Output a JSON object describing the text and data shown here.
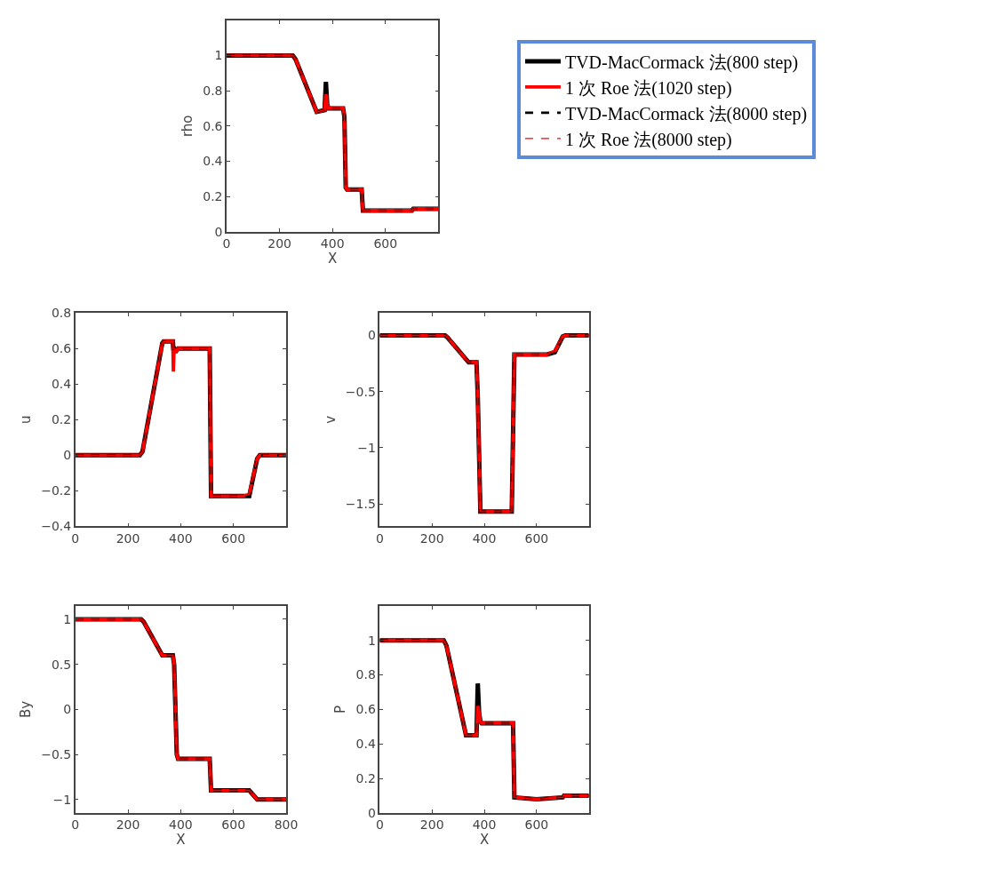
{
  "chart_data": [
    {
      "type": "line",
      "xlabel": "X",
      "ylabel": "rho",
      "xlim": [
        0,
        800
      ],
      "ylim": [
        0,
        1.2
      ],
      "xticks": [
        0,
        200,
        400,
        600
      ],
      "yticks": [
        0,
        0.2,
        0.4,
        0.6,
        0.8,
        1
      ],
      "legend": "right",
      "x": [
        0,
        250,
        260,
        340,
        370,
        375,
        380,
        385,
        390,
        440,
        445,
        450,
        455,
        510,
        515,
        700,
        705,
        800
      ],
      "series": [
        {
          "name": "TVD-MacCormack 法(800 step)",
          "color": "#000000",
          "line_style": "solid",
          "values": [
            1,
            1,
            0.98,
            0.68,
            0.69,
            0.85,
            0.72,
            0.7,
            0.7,
            0.7,
            0.65,
            0.25,
            0.24,
            0.24,
            0.12,
            0.12,
            0.13,
            0.13
          ]
        },
        {
          "name": "1 次 Roe 法(1020 step)",
          "color": "#ff0000",
          "line_style": "solid",
          "values": [
            1,
            1,
            0.98,
            0.68,
            0.69,
            0.78,
            0.72,
            0.7,
            0.7,
            0.7,
            0.65,
            0.25,
            0.24,
            0.24,
            0.12,
            0.12,
            0.13,
            0.13
          ]
        },
        {
          "name": "TVD-MacCormack 法(8000 step)",
          "color": "#000000",
          "line_style": "dashed",
          "values": [
            1,
            1,
            0.98,
            0.68,
            0.69,
            0.7,
            0.7,
            0.7,
            0.7,
            0.7,
            0.65,
            0.25,
            0.24,
            0.24,
            0.12,
            0.12,
            0.13,
            0.13
          ]
        },
        {
          "name": "1 次 Roe 法(8000 step)",
          "color": "#ff0000",
          "line_style": "dashed",
          "values": [
            1,
            1,
            0.98,
            0.68,
            0.69,
            0.7,
            0.7,
            0.7,
            0.7,
            0.7,
            0.65,
            0.25,
            0.24,
            0.24,
            0.12,
            0.12,
            0.13,
            0.13
          ]
        }
      ]
    },
    {
      "type": "line",
      "ylabel": "u",
      "xlim": [
        0,
        800
      ],
      "ylim": [
        -0.4,
        0.8
      ],
      "xticks": [
        0,
        200,
        400,
        600
      ],
      "yticks": [
        -0.4,
        -0.2,
        0,
        0.2,
        0.4,
        0.6,
        0.8
      ],
      "x": [
        0,
        245,
        255,
        330,
        335,
        370,
        372,
        375,
        380,
        390,
        510,
        515,
        640,
        660,
        690,
        700,
        800
      ],
      "series": [
        {
          "color": "#000000",
          "line_style": "solid",
          "values": [
            0,
            0,
            0.02,
            0.63,
            0.64,
            0.64,
            0.6,
            0.6,
            0.58,
            0.6,
            0.6,
            -0.23,
            -0.23,
            -0.23,
            -0.02,
            0,
            0
          ]
        },
        {
          "color": "#ff0000",
          "line_style": "solid",
          "values": [
            0,
            0,
            0.02,
            0.63,
            0.64,
            0.64,
            0.47,
            0.6,
            0.58,
            0.6,
            0.6,
            -0.23,
            -0.23,
            -0.22,
            -0.02,
            0,
            0
          ]
        },
        {
          "color": "#000000",
          "line_style": "dashed",
          "values": [
            0,
            0,
            0.02,
            0.63,
            0.64,
            0.64,
            0.6,
            0.6,
            0.6,
            0.6,
            0.6,
            -0.23,
            -0.23,
            -0.23,
            -0.02,
            0,
            0
          ]
        },
        {
          "color": "#ff0000",
          "line_style": "dashed",
          "values": [
            0,
            0,
            0.02,
            0.63,
            0.64,
            0.64,
            0.6,
            0.6,
            0.6,
            0.6,
            0.6,
            -0.23,
            -0.23,
            -0.22,
            -0.02,
            0,
            0
          ]
        }
      ]
    },
    {
      "type": "line",
      "ylabel": "v",
      "xlim": [
        0,
        800
      ],
      "ylim": [
        -1.7,
        0.2
      ],
      "xticks": [
        0,
        200,
        400,
        600
      ],
      "yticks": [
        -1.5,
        -1,
        -0.5,
        0
      ],
      "x": [
        0,
        250,
        260,
        340,
        370,
        375,
        385,
        505,
        515,
        640,
        670,
        700,
        710,
        800
      ],
      "series": [
        {
          "color": "#000000",
          "line_style": "solid",
          "values": [
            0,
            0,
            -0.02,
            -0.24,
            -0.24,
            -0.55,
            -1.57,
            -1.57,
            -0.17,
            -0.17,
            -0.15,
            -0.01,
            0,
            0
          ]
        },
        {
          "color": "#ff0000",
          "line_style": "solid",
          "values": [
            0,
            0,
            -0.02,
            -0.24,
            -0.24,
            -0.55,
            -1.57,
            -1.57,
            -0.17,
            -0.17,
            -0.14,
            -0.01,
            0,
            0
          ]
        },
        {
          "color": "#000000",
          "line_style": "dashed",
          "values": [
            0,
            0,
            -0.02,
            -0.24,
            -0.24,
            -0.55,
            -1.57,
            -1.57,
            -0.17,
            -0.17,
            -0.15,
            -0.01,
            0,
            0
          ]
        },
        {
          "color": "#ff0000",
          "line_style": "dashed",
          "values": [
            0,
            0,
            -0.02,
            -0.24,
            -0.24,
            -0.55,
            -1.57,
            -1.57,
            -0.17,
            -0.17,
            -0.14,
            -0.01,
            0,
            0
          ]
        }
      ]
    },
    {
      "type": "line",
      "xlabel": "X",
      "ylabel": "By",
      "xlim": [
        0,
        800
      ],
      "ylim": [
        -1.15,
        1.15
      ],
      "xticks": [
        0,
        200,
        400,
        600,
        800
      ],
      "yticks": [
        -1,
        -0.5,
        0,
        0.5,
        1
      ],
      "x": [
        0,
        250,
        260,
        330,
        370,
        375,
        385,
        390,
        510,
        515,
        660,
        690,
        800
      ],
      "series": [
        {
          "color": "#000000",
          "line_style": "solid",
          "values": [
            1,
            1,
            0.97,
            0.6,
            0.6,
            0.5,
            -0.5,
            -0.55,
            -0.55,
            -0.9,
            -0.9,
            -1,
            -1
          ]
        },
        {
          "color": "#ff0000",
          "line_style": "solid",
          "values": [
            1,
            1,
            0.97,
            0.6,
            0.6,
            0.5,
            -0.5,
            -0.55,
            -0.55,
            -0.9,
            -0.9,
            -1,
            -1
          ]
        },
        {
          "color": "#000000",
          "line_style": "dashed",
          "values": [
            1,
            1,
            0.97,
            0.6,
            0.6,
            0.5,
            -0.5,
            -0.55,
            -0.55,
            -0.9,
            -0.9,
            -1,
            -1
          ]
        },
        {
          "color": "#ff0000",
          "line_style": "dashed",
          "values": [
            1,
            1,
            0.97,
            0.6,
            0.6,
            0.5,
            -0.5,
            -0.55,
            -0.55,
            -0.9,
            -0.9,
            -1,
            -1
          ]
        }
      ]
    },
    {
      "type": "line",
      "xlabel": "X",
      "ylabel": "P",
      "xlim": [
        0,
        800
      ],
      "ylim": [
        0,
        1.2
      ],
      "xticks": [
        0,
        200,
        400,
        600
      ],
      "yticks": [
        0,
        0.2,
        0.4,
        0.6,
        0.8,
        1
      ],
      "x": [
        0,
        245,
        255,
        330,
        370,
        375,
        380,
        385,
        390,
        510,
        515,
        600,
        700,
        705,
        800
      ],
      "series": [
        {
          "color": "#000000",
          "line_style": "solid",
          "values": [
            1,
            1,
            0.97,
            0.45,
            0.45,
            0.75,
            0.58,
            0.53,
            0.52,
            0.52,
            0.09,
            0.08,
            0.09,
            0.1,
            0.1
          ]
        },
        {
          "color": "#ff0000",
          "line_style": "solid",
          "values": [
            1,
            1,
            0.97,
            0.45,
            0.45,
            0.62,
            0.58,
            0.53,
            0.52,
            0.52,
            0.09,
            0.08,
            0.09,
            0.1,
            0.1
          ]
        },
        {
          "color": "#000000",
          "line_style": "dashed",
          "values": [
            1,
            1,
            0.97,
            0.45,
            0.45,
            0.52,
            0.52,
            0.52,
            0.52,
            0.52,
            0.09,
            0.08,
            0.09,
            0.1,
            0.1
          ]
        },
        {
          "color": "#ff0000",
          "line_style": "dashed",
          "values": [
            1,
            1,
            0.97,
            0.45,
            0.45,
            0.52,
            0.52,
            0.52,
            0.52,
            0.52,
            0.09,
            0.08,
            0.09,
            0.1,
            0.1
          ]
        }
      ]
    }
  ]
}
